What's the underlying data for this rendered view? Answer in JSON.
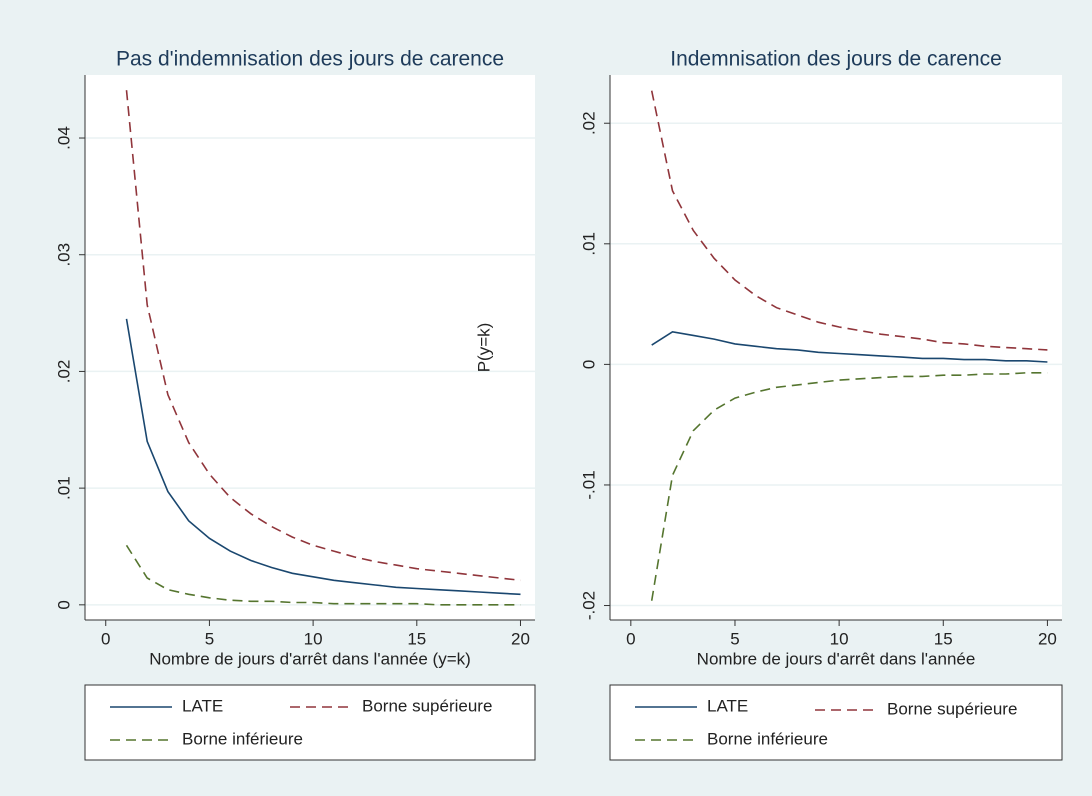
{
  "chart_data": [
    {
      "type": "line",
      "title": "Pas d'indemnisation des jours de carence",
      "xlabel": "Nombre de jours d'arrêt dans l'année (y=k)",
      "x": [
        1,
        2,
        3,
        4,
        5,
        6,
        7,
        8,
        9,
        10,
        11,
        12,
        13,
        14,
        15,
        16,
        17,
        18,
        19,
        20
      ],
      "series": [
        {
          "name": "LATE",
          "color": "#1a476f",
          "dash": false,
          "values": [
            0.0245,
            0.014,
            0.0097,
            0.0072,
            0.0057,
            0.0046,
            0.0038,
            0.0032,
            0.0027,
            0.0024,
            0.0021,
            0.0019,
            0.0017,
            0.0015,
            0.0014,
            0.0013,
            0.0012,
            0.0011,
            0.001,
            0.0009
          ]
        },
        {
          "name": "Borne supérieure",
          "color": "#90353b",
          "dash": true,
          "values": [
            0.0441,
            0.0257,
            0.018,
            0.0139,
            0.0112,
            0.0092,
            0.0078,
            0.0067,
            0.0058,
            0.0051,
            0.0046,
            0.0041,
            0.0037,
            0.0034,
            0.0031,
            0.0029,
            0.0027,
            0.0025,
            0.0023,
            0.0021
          ]
        },
        {
          "name": "Borne inférieure",
          "color": "#55752f",
          "dash": true,
          "values": [
            0.0051,
            0.0023,
            0.0013,
            0.0009,
            0.0006,
            0.0004,
            0.0003,
            0.0003,
            0.0002,
            0.0002,
            0.0001,
            0.0001,
            0.0001,
            0.0001,
            0.0001,
            0.0,
            0.0,
            0.0,
            0.0,
            0.0
          ]
        }
      ],
      "xlim": [
        -1,
        20.7
      ],
      "xticks": [
        0,
        5,
        10,
        15,
        20
      ],
      "ylim": [
        -0.0013,
        0.0454
      ],
      "yticks": [
        0,
        {
          "value": 0.01,
          "label": ".01"
        },
        {
          "value": 0.02,
          "label": ".02"
        },
        {
          "value": 0.03,
          "label": ".03"
        },
        {
          "value": 0.04,
          "label": ".04"
        }
      ],
      "grid": true
    },
    {
      "type": "line",
      "title": "Indemnisation des jours de carence",
      "xlabel": "Nombre de jours d'arrêt dans l'année",
      "ylabel": "P(y=k)",
      "x": [
        1,
        2,
        3,
        4,
        5,
        6,
        7,
        8,
        9,
        10,
        11,
        12,
        13,
        14,
        15,
        16,
        17,
        18,
        19,
        20
      ],
      "series": [
        {
          "name": "LATE",
          "color": "#1a476f",
          "dash": false,
          "values": [
            0.0016,
            0.0027,
            0.0024,
            0.0021,
            0.0017,
            0.0015,
            0.0013,
            0.0012,
            0.001,
            0.0009,
            0.0008,
            0.0007,
            0.0006,
            0.0005,
            0.0005,
            0.0004,
            0.0004,
            0.0003,
            0.0003,
            0.0002
          ]
        },
        {
          "name": "Borne supérieure",
          "color": "#90353b",
          "dash": true,
          "values": [
            0.0227,
            0.0144,
            0.0111,
            0.0088,
            0.007,
            0.0057,
            0.0047,
            0.0041,
            0.0035,
            0.0031,
            0.0028,
            0.0025,
            0.0023,
            0.0021,
            0.0018,
            0.0017,
            0.0015,
            0.0014,
            0.0013,
            0.0012
          ]
        },
        {
          "name": "Borne inférieure",
          "color": "#55752f",
          "dash": true,
          "values": [
            -0.0196,
            -0.0092,
            -0.0055,
            -0.0038,
            -0.0028,
            -0.0023,
            -0.0019,
            -0.0017,
            -0.0015,
            -0.0013,
            -0.0012,
            -0.0011,
            -0.001,
            -0.001,
            -0.0009,
            -0.0009,
            -0.0008,
            -0.0008,
            -0.0007,
            -0.0007
          ]
        }
      ],
      "xlim": [
        -1,
        20.7
      ],
      "xticks": [
        0,
        5,
        10,
        15,
        20
      ],
      "ylim": [
        -0.0212,
        0.024
      ],
      "yticks": [
        {
          "value": -0.02,
          "label": "-.02"
        },
        {
          "value": -0.01,
          "label": "-.01"
        },
        0,
        {
          "value": 0.01,
          "label": ".01"
        },
        {
          "value": 0.02,
          "label": ".02"
        }
      ],
      "grid": true
    }
  ]
}
